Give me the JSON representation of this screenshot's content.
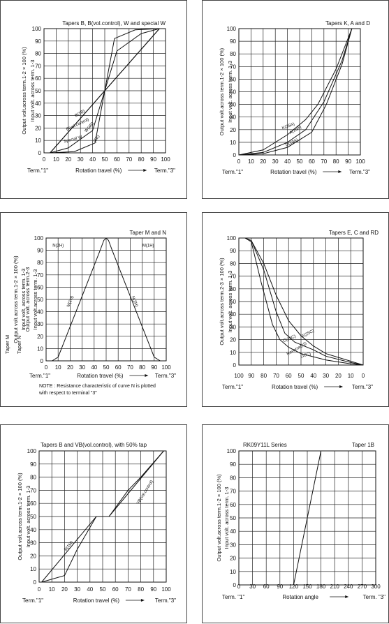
{
  "chart_data": [
    {
      "id": "p1",
      "type": "line",
      "title": "Tapers B, B(vol.control), W and special W",
      "ylabel_lines": [
        "Output volt.across term.1-2 × 100 (%)",
        "Input volt. across term. 1-3"
      ],
      "xlabel": "Rotation travel (%)",
      "term_left": "Term.\"1\"",
      "term_right": "Term.\"3\"",
      "x_ticks": [
        "0",
        "10",
        "20",
        "30",
        "40",
        "50",
        "60",
        "70",
        "80",
        "90",
        "100"
      ],
      "y_ticks": [
        "0",
        "10",
        "20",
        "30",
        "40",
        "50",
        "60",
        "70",
        "80",
        "90",
        "100"
      ],
      "xlim": [
        0,
        100
      ],
      "ylim": [
        0,
        100
      ],
      "series": [
        {
          "name": "B(1B)",
          "x": [
            5,
            95
          ],
          "y": [
            0,
            100
          ]
        },
        {
          "name": "B(vol.control)",
          "x": [
            5,
            50,
            95
          ],
          "y": [
            0,
            50,
            100
          ]
        },
        {
          "name": "W(4B)",
          "x": [
            5,
            20,
            40,
            50,
            60,
            80,
            95
          ],
          "y": [
            0,
            4,
            18,
            50,
            82,
            96,
            100
          ]
        },
        {
          "name": "Special W",
          "x": [
            5,
            25,
            42,
            50,
            58,
            75,
            95
          ],
          "y": [
            0,
            1,
            8,
            50,
            92,
            99,
            100
          ]
        }
      ],
      "labels": [
        {
          "text": "B(1B)",
          "x": 30,
          "y": 31,
          "rot": -30
        },
        {
          "text": "B(vol.control)",
          "x": 28,
          "y": 22,
          "rot": -25
        },
        {
          "text": "W(4B)",
          "x": 38,
          "y": 20,
          "rot": -48
        },
        {
          "text": "Special W",
          "x": 24,
          "y": 10,
          "rot": -15
        },
        {
          "text": "(5B)",
          "x": 44,
          "y": 11,
          "rot": -60
        }
      ]
    },
    {
      "id": "p2",
      "type": "line",
      "title": "Tapers K, A and D",
      "ylabel_lines": [
        "Output volt.across term.1-2 × 100 (%)",
        "Input volt. across term. 1-3"
      ],
      "xlabel": "Rotation travel (%)",
      "term_left": "Term.\"1\"",
      "term_right": "Term.\"3\"",
      "x_ticks": [
        "0",
        "10",
        "20",
        "30",
        "40",
        "50",
        "60",
        "70",
        "80",
        "90",
        "100"
      ],
      "y_ticks": [
        "0",
        "10",
        "20",
        "30",
        "40",
        "50",
        "60",
        "70",
        "80",
        "90",
        "100"
      ],
      "xlim": [
        0,
        100
      ],
      "ylim": [
        0,
        100
      ],
      "series": [
        {
          "name": "K(35A)",
          "x": [
            0,
            20,
            40,
            55,
            65,
            80,
            93
          ],
          "y": [
            0,
            4,
            16,
            28,
            40,
            68,
            100
          ]
        },
        {
          "name": "A(15A)",
          "x": [
            0,
            20,
            40,
            55,
            70,
            85,
            93
          ],
          "y": [
            0,
            2,
            10,
            20,
            42,
            75,
            100
          ]
        },
        {
          "name": "D(10A)",
          "x": [
            0,
            20,
            40,
            60,
            72,
            85,
            93
          ],
          "y": [
            0,
            1,
            6,
            18,
            40,
            72,
            100
          ]
        }
      ],
      "labels": [
        {
          "text": "K(35A)",
          "x": 41,
          "y": 22,
          "rot": -20
        },
        {
          "text": "A(15A)",
          "x": 47,
          "y": 19,
          "rot": -30
        },
        {
          "text": "D(10A)",
          "x": 44,
          "y": 9,
          "rot": -25
        }
      ]
    },
    {
      "id": "p3",
      "type": "line",
      "title": "Taper M and N",
      "ylabel_lines": [
        "Output volt.across term.1-2 × 100 (%)",
        "Input volt. across term. 1-3",
        "Output volt. across term.2-3",
        "Input volt.across term. 1-3"
      ],
      "ylabel_prefix": [
        "Taper M",
        "Taper N"
      ],
      "xlabel": "Rotation travel (%)",
      "term_left": "Term.\"1\"",
      "term_right": "Term.\"3\"",
      "x_ticks": [
        "0",
        "10",
        "20",
        "30",
        "40",
        "50",
        "60",
        "70",
        "80",
        "90",
        "100"
      ],
      "y_ticks": [
        "0",
        "10",
        "20",
        "30",
        "40",
        "50",
        "60",
        "70",
        "80",
        "90",
        "100"
      ],
      "xlim": [
        0,
        100
      ],
      "ylim": [
        0,
        100
      ],
      "series": [
        {
          "name": "M(1H)",
          "x": [
            5,
            10,
            45,
            48,
            50
          ],
          "y": [
            0,
            3,
            90,
            98,
            100
          ]
        },
        {
          "name": "N(2H)",
          "x": [
            50,
            52,
            55,
            90,
            95
          ],
          "y": [
            100,
            98,
            90,
            3,
            0
          ]
        }
      ],
      "labels": [
        {
          "text": "N(2H)",
          "x": 10,
          "y": 93,
          "rot": 0
        },
        {
          "text": "M(1H)",
          "x": 85,
          "y": 93,
          "rot": 0
        },
        {
          "text": "M(1H)",
          "x": 21,
          "y": 48,
          "rot": -68
        },
        {
          "text": "N(2H)",
          "x": 73,
          "y": 48,
          "rot": 68
        }
      ],
      "note": [
        "NOTE : Resistance characteristic of curve N is plotted",
        "with respect to terminal \"3\""
      ]
    },
    {
      "id": "p4",
      "type": "line",
      "title": "Tapers E, C and RD",
      "ylabel_lines": [
        "Output volt.across term.2-3 × 100 (%)",
        "Input volt. across term. 1-3"
      ],
      "xlabel": "Rotation travel (%)",
      "term_left": "Term.\"1\"",
      "term_right": "Term.\"3\"",
      "x_ticks": [
        "100",
        "90",
        "80",
        "70",
        "60",
        "50",
        "40",
        "30",
        "20",
        "10",
        "0"
      ],
      "y_ticks": [
        "0",
        "10",
        "20",
        "30",
        "40",
        "50",
        "60",
        "70",
        "80",
        "90",
        "100"
      ],
      "xlim": [
        100,
        0
      ],
      "ylim": [
        0,
        100
      ],
      "series": [
        {
          "name": "E(25C)",
          "x": [
            95,
            90,
            80,
            70,
            60,
            50,
            40,
            30,
            10,
            0
          ],
          "y": [
            100,
            98,
            80,
            55,
            35,
            23,
            15,
            9,
            3,
            0
          ]
        },
        {
          "name": "C(15C)",
          "x": [
            95,
            90,
            80,
            70,
            63,
            55,
            40,
            30,
            10,
            0
          ],
          "y": [
            100,
            98,
            75,
            42,
            25,
            18,
            12,
            7,
            2,
            0
          ]
        },
        {
          "name": "Reverse(10C)",
          "x": [
            95,
            90,
            82,
            73,
            67,
            60,
            50,
            30,
            10,
            0
          ],
          "y": [
            100,
            97,
            65,
            32,
            20,
            14,
            9,
            4,
            1,
            0
          ]
        }
      ],
      "labels": [
        {
          "text": "E(25C)",
          "x": 44,
          "y": 24,
          "rot": -28
        },
        {
          "text": "C(15C)",
          "x": 59,
          "y": 20,
          "rot": -22
        },
        {
          "text": "Reverse(1D",
          "x": 53,
          "y": 12,
          "rot": -30
        },
        {
          "text": "(10C)",
          "x": 46,
          "y": 7,
          "rot": -15
        }
      ]
    },
    {
      "id": "p5",
      "type": "line",
      "title": "Tapers B and VB(vol.control), with 50% tap",
      "ylabel_lines": [
        "Output volt.across term.1-2 × 100 (%)",
        "Input volt. across term. 1-3"
      ],
      "xlabel": "Rotation travel (%)",
      "term_left": "Term.\"1\"",
      "term_right": "Term.\"3\"",
      "x_ticks": [
        "0",
        "10",
        "20",
        "30",
        "40",
        "50",
        "60",
        "70",
        "80",
        "90",
        "100"
      ],
      "y_ticks": [
        "0",
        "10",
        "20",
        "30",
        "40",
        "50",
        "60",
        "70",
        "80",
        "90",
        "100"
      ],
      "xlim": [
        0,
        100
      ],
      "ylim": [
        0,
        100
      ],
      "series": [
        {
          "name": "B(1M)",
          "x": [
            2,
            45,
            50,
            55,
            98
          ],
          "y": [
            0,
            50,
            50,
            50,
            100
          ]
        },
        {
          "name": "VB(vol.control)",
          "x": [
            2,
            20,
            30,
            45,
            50,
            55,
            70,
            80,
            98
          ],
          "y": [
            0,
            5,
            25,
            50,
            50,
            50,
            70,
            80,
            100
          ]
        }
      ],
      "labels": [
        {
          "text": "B(1M)",
          "x": 24,
          "y": 27,
          "rot": -50
        },
        {
          "text": "VB(vol.control)",
          "x": 84,
          "y": 68,
          "rot": -58
        }
      ]
    },
    {
      "id": "p6",
      "type": "line",
      "title": "RK09Y11L Series",
      "title_right": "Taper 1B",
      "ylabel_lines": [
        "Output volt.across term.1-2 × 100 (%)",
        "Input volt. across term. 1-3"
      ],
      "xlabel": "Rotation angle",
      "term_left": "Term. \"1\"",
      "term_right": "Term. \"3\"",
      "x_ticks": [
        "0",
        "30",
        "60",
        "90",
        "120",
        "150",
        "180",
        "210",
        "240",
        "270",
        "300"
      ],
      "y_ticks": [
        "0",
        "10",
        "20",
        "30",
        "40",
        "50",
        "60",
        "70",
        "80",
        "90",
        "100"
      ],
      "xlim": [
        0,
        300
      ],
      "ylim": [
        0,
        100
      ],
      "series": [
        {
          "name": "1B",
          "x": [
            120,
            180
          ],
          "y": [
            0,
            100
          ]
        }
      ],
      "labels": []
    }
  ]
}
